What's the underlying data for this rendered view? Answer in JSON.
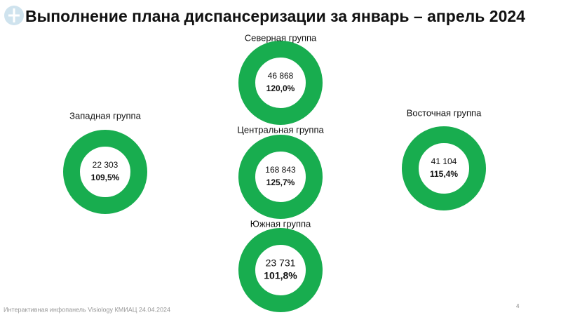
{
  "header": {
    "title": "Выполнение плана диспансеризации за январь – апрель 2024"
  },
  "groups": [
    {
      "name": "Северная группа",
      "count": "46 868",
      "percent": "120,0%"
    },
    {
      "name": "Западная группа",
      "count": "22 303",
      "percent": "109,5%"
    },
    {
      "name": "Центральная группа",
      "count": "168 843",
      "percent": "125,7%"
    },
    {
      "name": "Восточная группа",
      "count": "41 104",
      "percent": "115,4%"
    },
    {
      "name": "Южная группа",
      "count": "23 731",
      "percent": "101,8%"
    }
  ],
  "footer": {
    "source": "Интерактивная инфопанель Visiology КМИАЦ 24.04.2024",
    "page": "4"
  }
}
